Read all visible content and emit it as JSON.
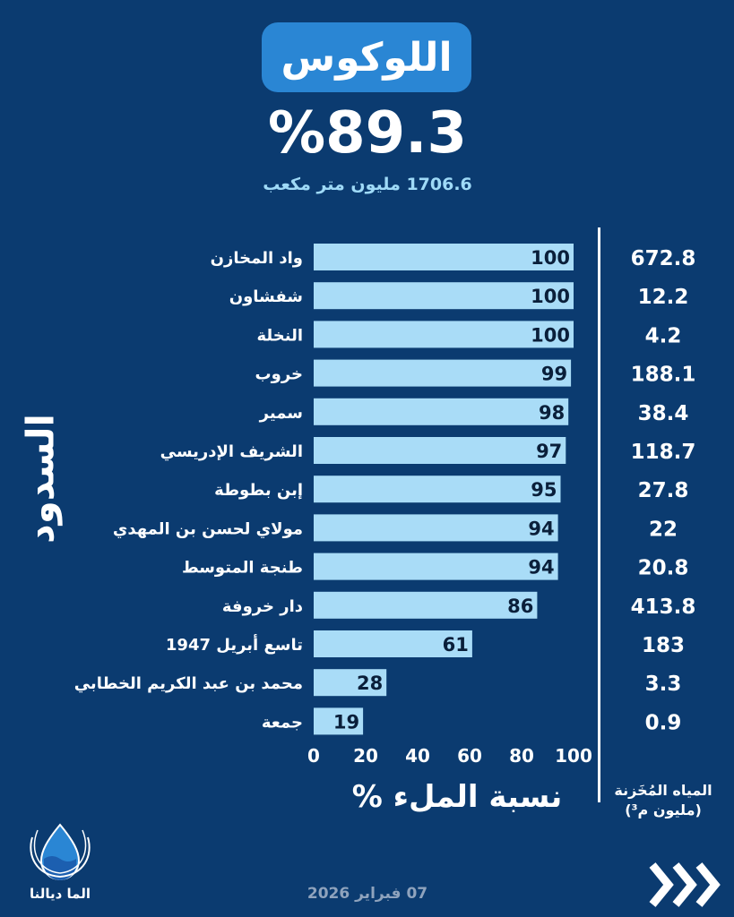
{
  "header": {
    "title": "اللوكوس",
    "fill_percent": "%89.3",
    "volume": "1706.6 مليون متر مكعب"
  },
  "side_title": "السدود",
  "chart_data": {
    "type": "bar",
    "orientation": "horizontal",
    "categories": [
      "واد المخازن",
      "شفشاون",
      "النخلة",
      "خروب",
      "سمير",
      "الشريف الإدريسي",
      "إبن بطوطة",
      "مولاي لحسن بن المهدي",
      "طنجة المتوسط",
      "دار خروفة",
      "تاسع أبريل 1947",
      "محمد بن عبد الكريم الخطابي",
      "جمعة"
    ],
    "values": [
      100,
      100,
      100,
      99,
      98,
      97,
      95,
      94,
      94,
      86,
      61,
      28,
      19
    ],
    "value_labels": [
      "100",
      "100",
      "100",
      "99",
      "98",
      "97",
      "95",
      "94",
      "94",
      "86",
      "61",
      "28",
      "19"
    ],
    "stored_water": [
      "672.8",
      "12.2",
      "4.2",
      "188.1",
      "38.4",
      "118.7",
      "27.8",
      "22",
      "20.8",
      "413.8",
      "183",
      "3.3",
      "0.9"
    ],
    "xlim": [
      0,
      100
    ],
    "xticks": [
      "0",
      "20",
      "40",
      "60",
      "80",
      "100"
    ],
    "xlabel": "نسبة الملء %",
    "stored_label_line1": "المياه المُخَزنة",
    "stored_label_line2": "(مليون م³)",
    "colors": {
      "bar": "#a9dcf7",
      "background": "#0b3b70"
    }
  },
  "footer": {
    "logo_text": "الما ديالنا",
    "date": "07 فبراير 2026"
  }
}
